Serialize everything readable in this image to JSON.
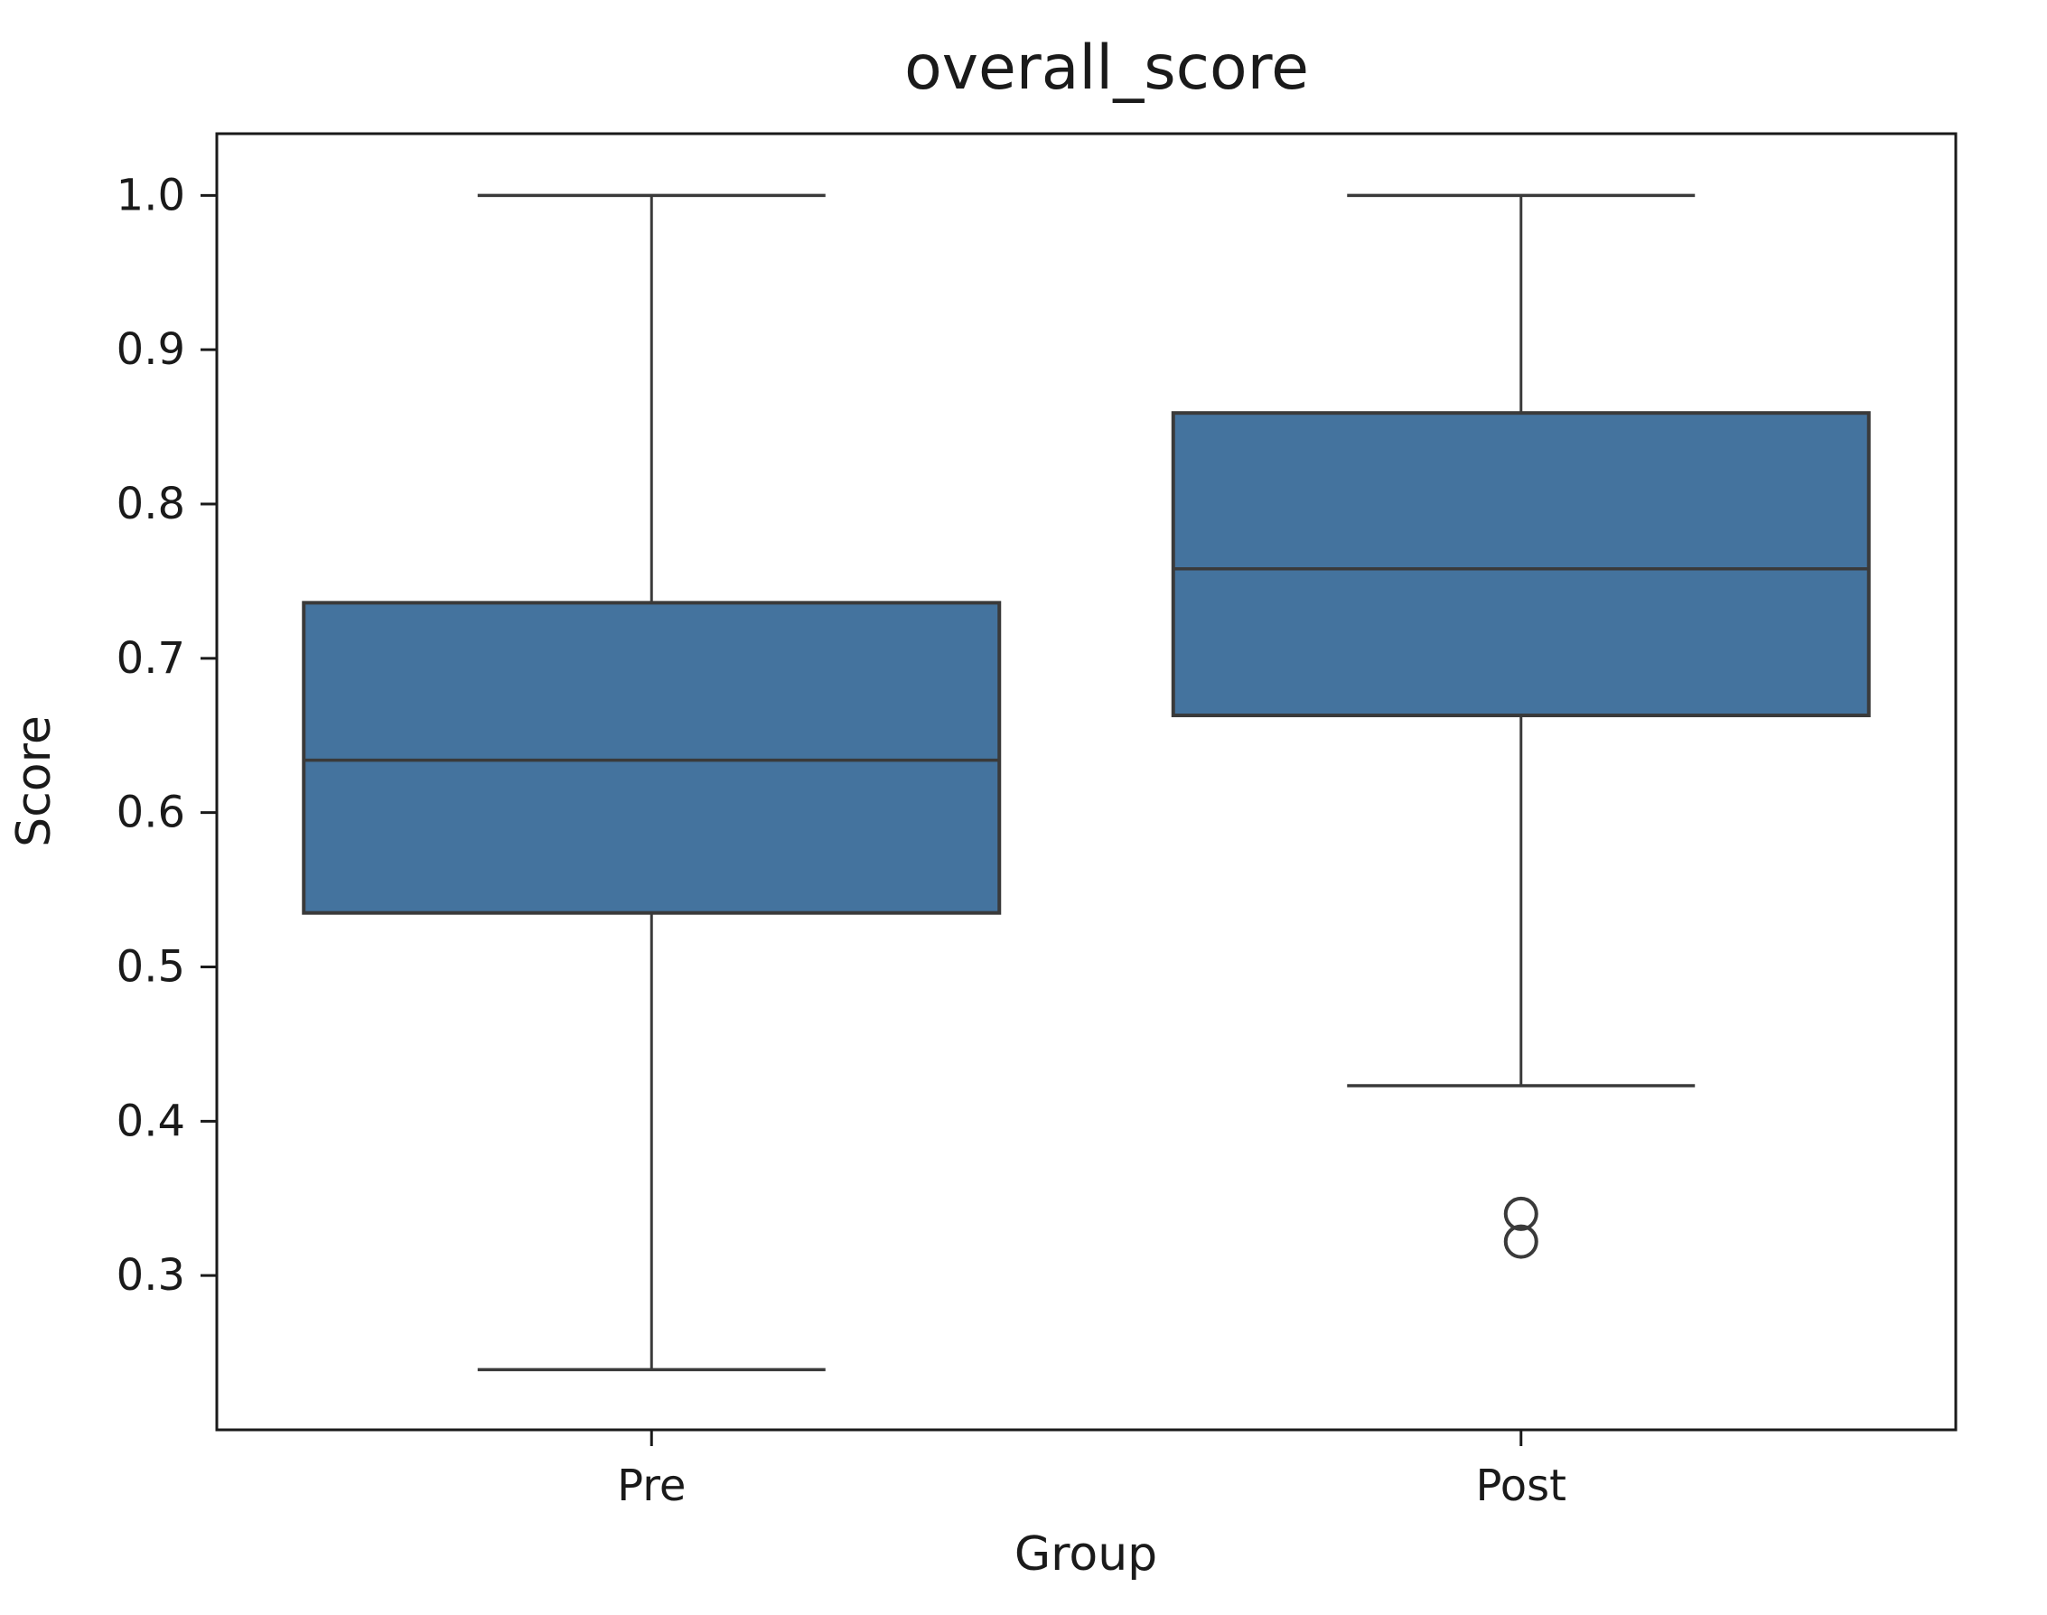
{
  "chart_data": {
    "type": "box",
    "title": "overall_score",
    "xlabel": "Group",
    "ylabel": "Score",
    "categories": [
      "Pre",
      "Post"
    ],
    "ylim": [
      0.2,
      1.04
    ],
    "yticks": [
      0.3,
      0.4,
      0.5,
      0.6,
      0.7,
      0.8,
      0.9,
      1.0
    ],
    "grid": false,
    "legend": "none",
    "series": [
      {
        "name": "Pre",
        "whisker_low": 0.239,
        "q1": 0.535,
        "median": 0.634,
        "q3": 0.736,
        "whisker_high": 1.0,
        "outliers": []
      },
      {
        "name": "Post",
        "whisker_low": 0.423,
        "q1": 0.663,
        "median": 0.758,
        "q3": 0.859,
        "whisker_high": 1.0,
        "outliers": [
          0.34,
          0.322
        ]
      }
    ],
    "colors": {
      "box_fill": "#44739E",
      "box_line": "#3A3A3A",
      "spine": "#1a1a1a",
      "text": "#1a1a1a"
    }
  }
}
